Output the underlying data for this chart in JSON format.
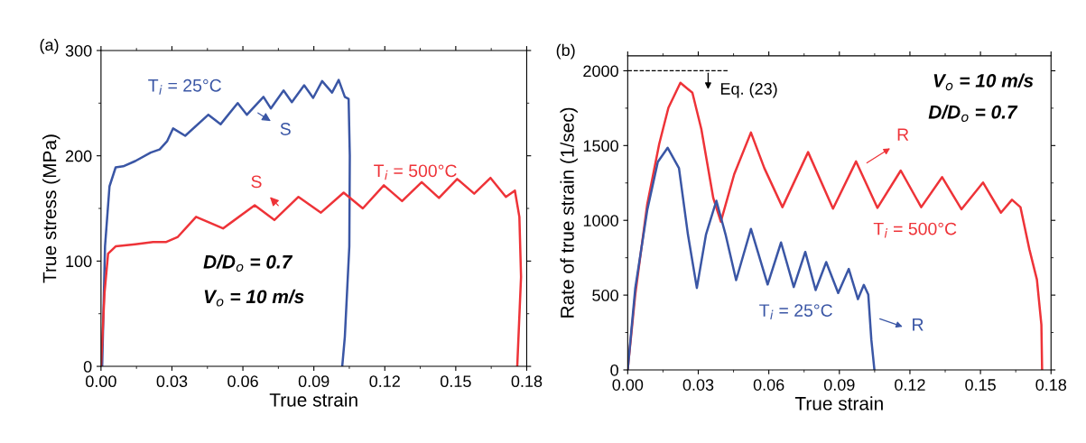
{
  "chart_data": [
    {
      "type": "line",
      "xlabel": "True strain",
      "ylabel": "True stress (MPa)",
      "xlim": [
        0,
        0.18
      ],
      "ylim": [
        0,
        300
      ],
      "xticks": [
        {
          "value": 0,
          "label": "0.00"
        },
        {
          "value": 0.03,
          "label": "0.03"
        },
        {
          "value": 0.06,
          "label": "0.06"
        },
        {
          "value": 0.09,
          "label": "0.09"
        },
        {
          "value": 0.12,
          "label": "0.12"
        },
        {
          "value": 0.15,
          "label": "0.15"
        },
        {
          "value": 0.18,
          "label": "0.18"
        }
      ],
      "yticks": [
        0,
        100,
        200,
        300
      ],
      "grid": false,
      "legend": false,
      "marker": "none",
      "line_style": "solid",
      "series": [
        {
          "name": "T$_{i}$ = 25°C",
          "color": "#3a56a5",
          "x": [
            0.0005,
            0.0017,
            0.0036,
            0.0062,
            0.0094,
            0.0145,
            0.021,
            0.0248,
            0.028,
            0.0305,
            0.0356,
            0.0454,
            0.0506,
            0.0578,
            0.0617,
            0.0687,
            0.0718,
            0.0772,
            0.0807,
            0.0859,
            0.0897,
            0.0935,
            0.0977,
            0.1005,
            0.1031,
            0.1047,
            0.1052,
            0.105,
            0.1031,
            0.102
          ],
          "values": [
            0,
            114,
            171,
            189,
            190,
            195,
            203,
            206,
            214,
            226,
            219,
            239,
            230,
            250,
            239,
            256,
            245,
            262,
            251,
            267,
            255,
            271,
            260,
            272,
            256,
            254,
            200,
            114,
            28,
            0
          ]
        },
        {
          "name": "T$_{i}$ = 500°C",
          "color": "#ee3338",
          "x": [
            0,
            0.0015,
            0.003,
            0.0062,
            0.0145,
            0.022,
            0.0274,
            0.0325,
            0.0402,
            0.0516,
            0.065,
            0.0733,
            0.0835,
            0.093,
            0.1026,
            0.1107,
            0.1196,
            0.1273,
            0.1356,
            0.1429,
            0.1506,
            0.1578,
            0.1647,
            0.1712,
            0.175,
            0.1769,
            0.1776,
            0.176
          ],
          "values": [
            0,
            70,
            107,
            114,
            116,
            118,
            118,
            123,
            142,
            131,
            153,
            139,
            161,
            146,
            165,
            150,
            172,
            157,
            175,
            160,
            178,
            164,
            179,
            161,
            167,
            142,
            85,
            0
          ]
        }
      ],
      "annotations": [
        "(a)",
        "D/D$_{o}$ = 0.7",
        "V$_{o}$ = 10 m/s",
        {
          "text": "S",
          "x": 0.0655,
          "y": 242
        },
        {
          "text": "S",
          "x": 0.0757,
          "y": 151
        }
      ]
    },
    {
      "type": "line",
      "xlabel": "True strain",
      "ylabel": "Rate of true strain (1/sec)",
      "xlim": [
        0,
        0.18
      ],
      "ylim": [
        0,
        2100
      ],
      "xticks": [
        {
          "value": 0,
          "label": "0.00"
        },
        {
          "value": 0.03,
          "label": "0.03"
        },
        {
          "value": 0.06,
          "label": "0.06"
        },
        {
          "value": 0.09,
          "label": "0.09"
        },
        {
          "value": 0.12,
          "label": "0.12"
        },
        {
          "value": 0.15,
          "label": "0.15"
        },
        {
          "value": 0.18,
          "label": "0.18"
        }
      ],
      "yticks": [
        0,
        500,
        1000,
        1500,
        2000
      ],
      "grid": false,
      "marker": "none",
      "line_style": "solid",
      "series": [
        {
          "name": "T$_{i}$ = 500°C",
          "color": "#ee3338",
          "x": [
            0,
            0.0032,
            0.0083,
            0.0134,
            0.0173,
            0.0224,
            0.0275,
            0.0313,
            0.0364,
            0.0396,
            0.0453,
            0.0524,
            0.0581,
            0.0658,
            0.0767,
            0.0873,
            0.0971,
            0.1062,
            0.1161,
            0.1248,
            0.1337,
            0.1419,
            0.1511,
            0.1587,
            0.1634,
            0.167,
            0.1708,
            0.174,
            0.1759,
            0.1762
          ],
          "values": [
            0,
            503,
            1107,
            1511,
            1752,
            1920,
            1853,
            1611,
            1148,
            991,
            1309,
            1587,
            1349,
            1088,
            1456,
            1078,
            1394,
            1083,
            1333,
            1088,
            1289,
            1074,
            1253,
            1051,
            1138,
            1088,
            806,
            604,
            302,
            0
          ]
        },
        {
          "name": "T$_{i}$ = 25°C",
          "color": "#3a56a5",
          "x": [
            0,
            0.0032,
            0.0083,
            0.0128,
            0.017,
            0.0218,
            0.0256,
            0.0294,
            0.0333,
            0.0377,
            0.0416,
            0.0461,
            0.0524,
            0.0595,
            0.0652,
            0.0706,
            0.0755,
            0.0799,
            0.0844,
            0.0895,
            0.094,
            0.0979,
            0.1004,
            0.1023,
            0.1036,
            0.1049
          ],
          "values": [
            0,
            544,
            1067,
            1390,
            1485,
            1349,
            906,
            548,
            906,
            1131,
            906,
            600,
            943,
            571,
            852,
            554,
            789,
            534,
            721,
            514,
            675,
            473,
            568,
            503,
            201,
            0
          ]
        }
      ],
      "ref_lines": [
        {
          "axis": "y",
          "value": 2000,
          "label": "Eq. (23)",
          "color": "#000000",
          "line_style": "dashed"
        }
      ],
      "annotations": [
        "(b)",
        "V$_{o}$ = 10 m/s",
        "D/D$_{o}$ = 0.7",
        "R",
        "R"
      ]
    }
  ]
}
